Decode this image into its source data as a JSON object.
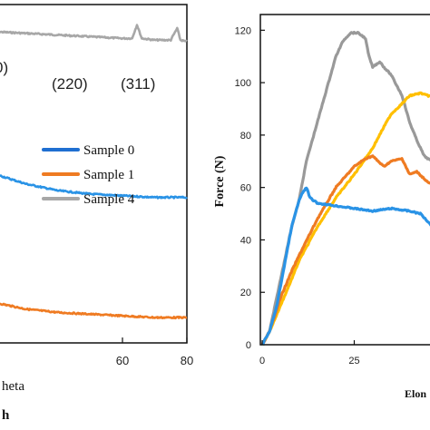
{
  "chart_data": [
    {
      "type": "line",
      "panel_label": "h",
      "xlabel": "heta",
      "x_ticks": [
        "60",
        "80"
      ],
      "xlim": [
        20,
        80
      ],
      "peak_labels": [
        "0)",
        "(220)",
        "(311)"
      ],
      "legend": {
        "placement": "right",
        "entries": [
          {
            "name": "Sample 0",
            "color": "#1f6fd1"
          },
          {
            "name": "Sample 1",
            "color": "#ef7b22"
          },
          {
            "name": "Sample 4",
            "color": "#a7a7a7"
          }
        ]
      },
      "series": [
        {
          "name": "Sample 4",
          "color": "#a7a7a7",
          "x": [
            20,
            40,
            50,
            60,
            63,
            64.5,
            66,
            70,
            75,
            77,
            78,
            80
          ],
          "y": [
            0.92,
            0.91,
            0.905,
            0.9,
            0.9,
            0.94,
            0.9,
            0.895,
            0.895,
            0.93,
            0.895,
            0.89
          ]
        },
        {
          "name": "Sample 0",
          "color": "#2a93e6",
          "x": [
            20,
            30,
            40,
            50,
            60,
            70,
            80
          ],
          "y": [
            0.5,
            0.47,
            0.45,
            0.44,
            0.435,
            0.43,
            0.43
          ]
        },
        {
          "name": "Sample 1",
          "color": "#ef7b22",
          "x": [
            20,
            30,
            40,
            50,
            60,
            70,
            80
          ],
          "y": [
            0.12,
            0.1,
            0.09,
            0.085,
            0.08,
            0.075,
            0.075
          ]
        }
      ]
    },
    {
      "type": "line",
      "ylabel": "Force (N)",
      "xlabel": "Elon",
      "y_ticks": [
        0,
        20,
        40,
        60,
        80,
        100,
        120
      ],
      "x_ticks": [
        0,
        25
      ],
      "ylim": [
        0,
        126
      ],
      "xlim": [
        0,
        50
      ],
      "series": [
        {
          "color": "#999999",
          "x": [
            0,
            2,
            5,
            8,
            10,
            12,
            15,
            18,
            20,
            22,
            24,
            26,
            28,
            29,
            30,
            32,
            33,
            35,
            38,
            40,
            42,
            44,
            46,
            48
          ],
          "y": [
            0,
            5,
            25,
            45,
            55,
            70,
            85,
            100,
            110,
            116,
            119,
            119,
            117,
            110,
            106,
            108,
            106,
            103,
            95,
            85,
            78,
            72,
            70,
            68
          ]
        },
        {
          "color": "#ffbf00",
          "x": [
            0,
            2,
            5,
            8,
            10,
            15,
            20,
            25,
            30,
            33,
            35,
            38,
            40,
            43,
            45,
            48
          ],
          "y": [
            0,
            5,
            15,
            25,
            32,
            45,
            56,
            65,
            75,
            83,
            88,
            92,
            95,
            96,
            95,
            95
          ]
        },
        {
          "color": "#ef7b22",
          "x": [
            0,
            2,
            5,
            8,
            10,
            15,
            20,
            25,
            28,
            30,
            33,
            35,
            38,
            40,
            42,
            45,
            48
          ],
          "y": [
            0,
            5,
            18,
            28,
            34,
            48,
            60,
            68,
            71,
            72,
            68,
            70,
            71,
            65,
            66,
            62,
            60
          ]
        },
        {
          "color": "#2a93e6",
          "x": [
            0,
            2,
            4,
            6,
            8,
            10,
            11,
            12,
            13,
            15,
            20,
            25,
            30,
            35,
            40,
            43,
            45,
            47,
            48
          ],
          "y": [
            0,
            5,
            15,
            30,
            45,
            55,
            58,
            60,
            56,
            54,
            53,
            52,
            51,
            52,
            51,
            50,
            47,
            44,
            44
          ]
        }
      ]
    }
  ]
}
